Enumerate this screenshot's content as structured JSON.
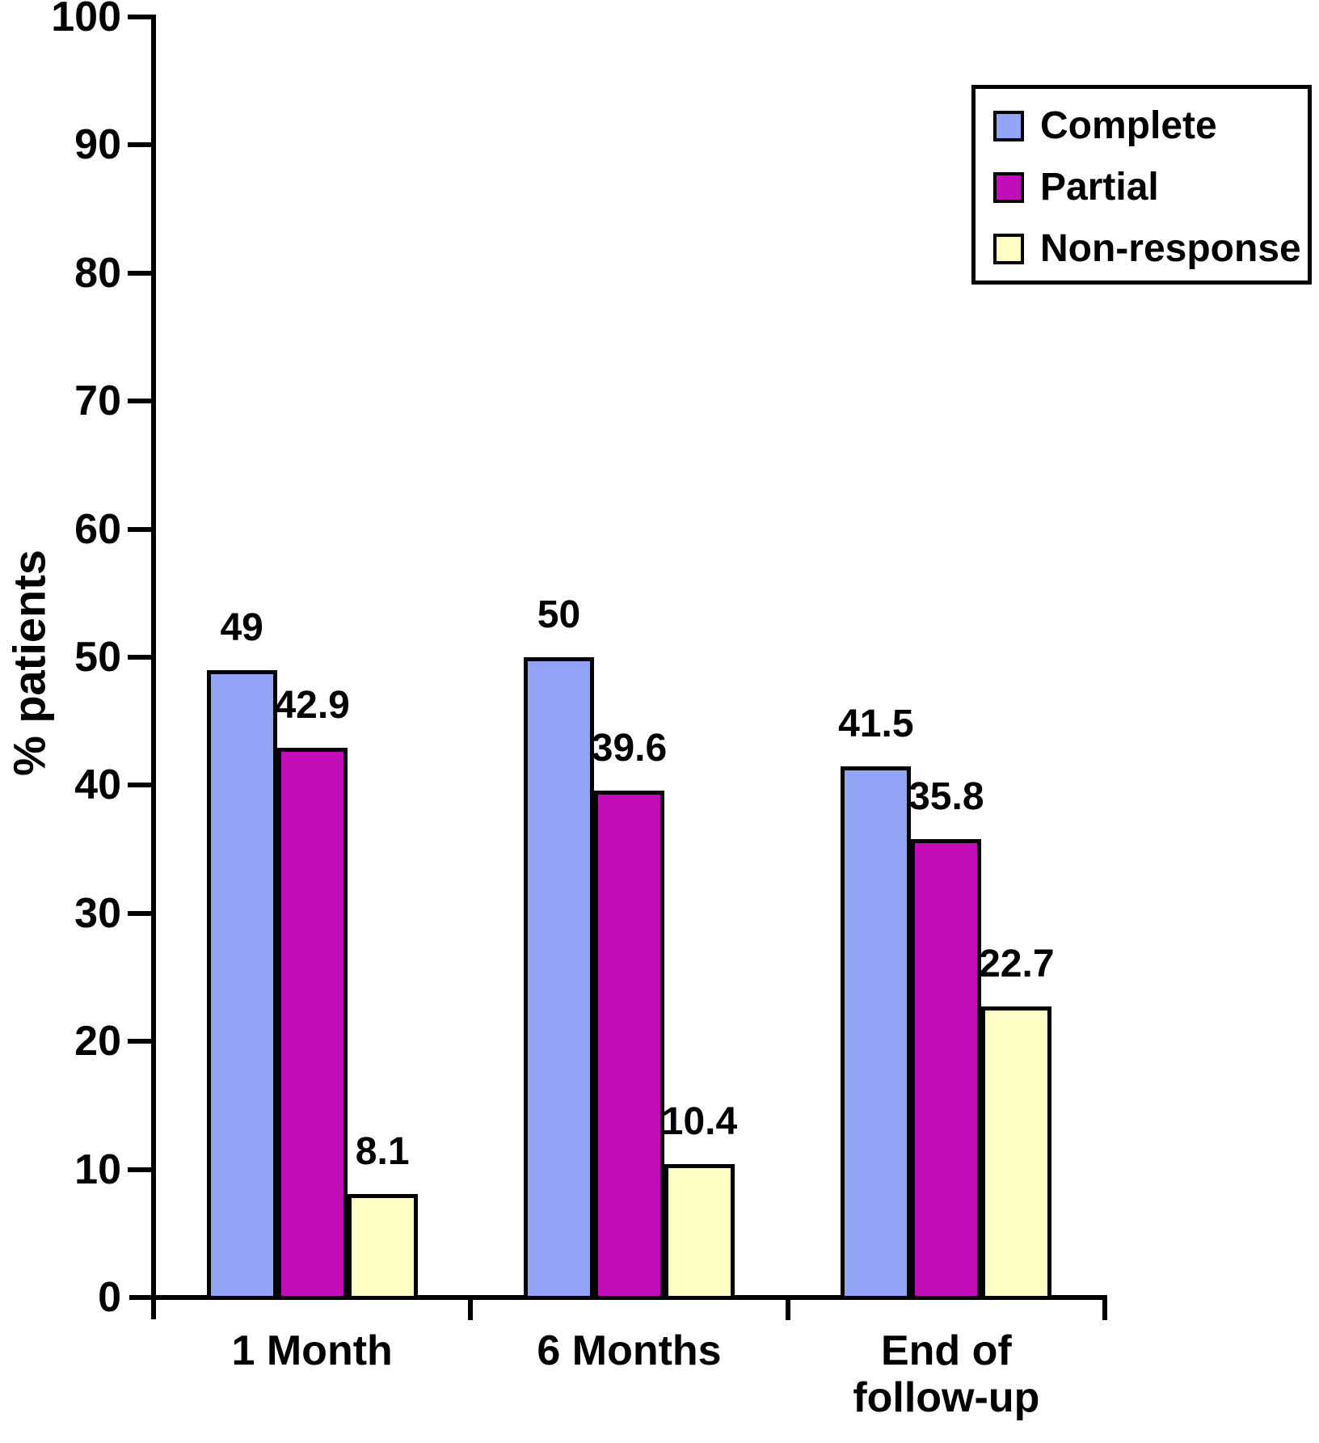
{
  "chart_data": {
    "type": "bar",
    "title": "",
    "xlabel": "",
    "ylabel": "% patients",
    "ylim": [
      0,
      100
    ],
    "ytick_step": 10,
    "grid": false,
    "legend_position": "top-right",
    "categories": [
      "1 Month",
      "6 Months",
      "End of\nfollow-up"
    ],
    "series": [
      {
        "name": "Complete",
        "color": "#93A4F6",
        "values": [
          49,
          50,
          41.5
        ],
        "labels": [
          "49",
          "50",
          "41.5"
        ]
      },
      {
        "name": "Partial",
        "color": "#C20DB8",
        "values": [
          42.9,
          39.6,
          35.8
        ],
        "labels": [
          "42.9",
          "39.6",
          "35.8"
        ]
      },
      {
        "name": "Non-response",
        "color": "#FFFFC5",
        "values": [
          8.1,
          10.4,
          22.7
        ],
        "labels": [
          "8.1",
          "10.4",
          "22.7"
        ]
      }
    ]
  },
  "colors": {
    "axis": "#000000",
    "text": "#000000",
    "background": "#FFFFFF"
  }
}
